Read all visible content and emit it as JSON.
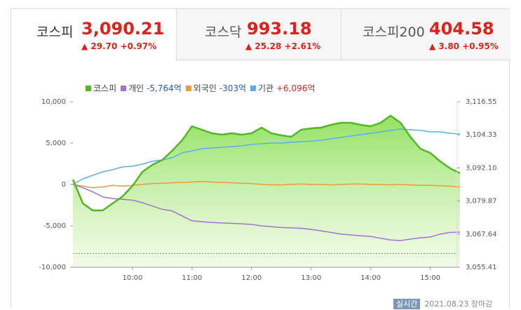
{
  "tabs": [
    {
      "name": "코스피",
      "value": "3,090.21",
      "change": "29.70",
      "change_pct": "+0.97%"
    },
    {
      "name": "코스닥",
      "value": "993.18",
      "change": "25.28",
      "change_pct": "+2.61%"
    },
    {
      "name": "코스피200",
      "value": "404.58",
      "change": "3.80",
      "change_pct": "+0.95%"
    }
  ],
  "chart_data": {
    "type": "line",
    "x": [
      "09:00",
      "09:10",
      "09:20",
      "09:30",
      "09:40",
      "09:50",
      "10:00",
      "10:10",
      "10:20",
      "10:30",
      "10:40",
      "10:50",
      "11:00",
      "11:10",
      "11:20",
      "11:30",
      "11:40",
      "11:50",
      "12:00",
      "12:10",
      "12:20",
      "12:30",
      "12:40",
      "12:50",
      "13:00",
      "13:10",
      "13:20",
      "13:30",
      "13:40",
      "13:50",
      "14:00",
      "14:10",
      "14:20",
      "14:30",
      "14:40",
      "14:50",
      "15:00",
      "15:10",
      "15:20",
      "15:30"
    ],
    "xlim": [
      "09:00",
      "15:30"
    ],
    "xticks": [
      "10:00",
      "11:00",
      "12:00",
      "13:00",
      "14:00",
      "15:00"
    ],
    "ylim": [
      -10000,
      10000
    ],
    "yticks": [
      {
        "value": -10000,
        "label": "-10,000"
      },
      {
        "value": -5000,
        "label": "-5,000"
      },
      0,
      {
        "value": 5000,
        "label": "5,000"
      },
      {
        "value": 10000,
        "label": "10,000"
      }
    ],
    "y2lim": [
      3055.41,
      3116.55
    ],
    "y2ticks": [
      {
        "value": 3055.41,
        "label": "3,055.41"
      },
      {
        "value": 3067.64,
        "label": "3,067.64"
      },
      {
        "value": 3079.87,
        "label": "3,079.87"
      },
      {
        "value": 3092.1,
        "label": "3,092.10"
      },
      {
        "value": 3104.33,
        "label": "3,104.33"
      },
      {
        "value": 3116.55,
        "label": "3,116.55"
      }
    ],
    "reference_line": {
      "value": 3060.51,
      "axis": "y2"
    },
    "series": [
      {
        "name": "코스피",
        "color": "#52b722",
        "axis": "y2",
        "area": true,
        "values": [
          3087.79,
          3078.99,
          3076.39,
          3076.39,
          3078.99,
          3081.58,
          3085.46,
          3090.64,
          3093.23,
          3095.05,
          3098.42,
          3102.3,
          3107.48,
          3106.19,
          3104.89,
          3104.37,
          3104.89,
          3104.37,
          3104.89,
          3106.96,
          3104.89,
          3104.12,
          3103.6,
          3106.19,
          3106.71,
          3106.96,
          3108.0,
          3108.78,
          3108.78,
          3108.0,
          3107.48,
          3108.78,
          3111.37,
          3108.78,
          3103.6,
          3099.19,
          3097.64,
          3094.53,
          3091.94,
          3090.21
        ]
      },
      {
        "name": "개인",
        "color": "#a173d1",
        "total": "-5,764억",
        "total_color": "#1f5bc6",
        "values": [
          0,
          -400,
          -900,
          -1500,
          -1700,
          -1800,
          -1900,
          -2200,
          -2600,
          -3000,
          -3200,
          -3800,
          -4400,
          -4500,
          -4600,
          -4650,
          -4700,
          -4750,
          -4830,
          -5000,
          -5100,
          -5200,
          -5250,
          -5300,
          -5420,
          -5600,
          -5800,
          -6000,
          -6100,
          -6200,
          -6270,
          -6500,
          -6700,
          -6780,
          -6600,
          -6450,
          -6360,
          -6000,
          -5800,
          -5764
        ]
      },
      {
        "name": "외국인",
        "color": "#eb9a3c",
        "total": "-303억",
        "total_color": "#1f5bc6",
        "values": [
          0,
          -200,
          -400,
          -300,
          -100,
          -200,
          -100,
          0,
          100,
          150,
          200,
          250,
          300,
          350,
          300,
          250,
          200,
          150,
          100,
          0,
          -50,
          -50,
          0,
          50,
          0,
          0,
          -50,
          0,
          50,
          50,
          0,
          0,
          -50,
          0,
          -50,
          -100,
          -100,
          -150,
          -200,
          -303
        ]
      },
      {
        "name": "기관",
        "color": "#5aaef0",
        "total": "+6,096억",
        "total_color": "#e02020",
        "values": [
          0,
          678,
          1100,
          1525,
          1780,
          2120,
          2200,
          2460,
          2800,
          2970,
          3220,
          3810,
          4070,
          4320,
          4410,
          4490,
          4580,
          4660,
          4830,
          4920,
          5000,
          5000,
          5090,
          5170,
          5250,
          5340,
          5510,
          5680,
          5850,
          6020,
          6190,
          6360,
          6530,
          6700,
          6610,
          6530,
          6360,
          6360,
          6190,
          6096
        ]
      }
    ]
  },
  "footer": {
    "badge": "실시간",
    "date": "2021.08.23",
    "status": "장마감"
  }
}
